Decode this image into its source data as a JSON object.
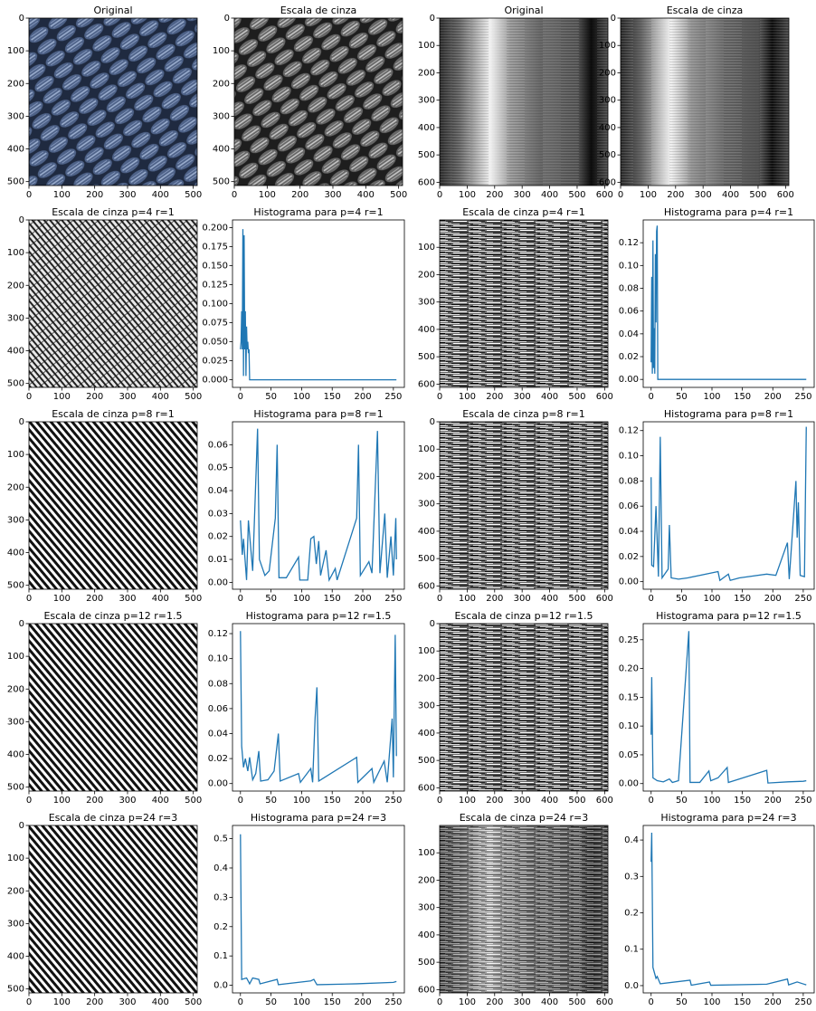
{
  "chart_data": [
    {
      "type": "image",
      "title": "Original",
      "xlim": [
        0,
        512
      ],
      "ylim": [
        512,
        0
      ],
      "xticks": [
        0,
        100,
        200,
        300,
        400,
        500
      ],
      "yticks": [
        0,
        100,
        200,
        300,
        400,
        500
      ]
    },
    {
      "type": "image",
      "title": "Escala de cinza",
      "xlim": [
        0,
        512
      ],
      "ylim": [
        512,
        0
      ],
      "xticks": [
        0,
        100,
        200,
        300,
        400,
        500
      ],
      "yticks": [
        0,
        100,
        200,
        300,
        400,
        500
      ]
    },
    {
      "type": "image",
      "title": "Original",
      "xlim": [
        0,
        612
      ],
      "ylim": [
        612,
        0
      ],
      "xticks": [
        0,
        100,
        200,
        300,
        400,
        500,
        600
      ],
      "yticks": [
        0,
        100,
        200,
        300,
        400,
        500,
        600
      ]
    },
    {
      "type": "image",
      "title": "Escala de cinza",
      "xlim": [
        0,
        612
      ],
      "ylim": [
        612,
        0
      ],
      "xticks": [
        0,
        100,
        200,
        300,
        400,
        500,
        600
      ],
      "yticks": [
        0,
        100,
        200,
        300,
        400,
        500,
        600
      ]
    },
    {
      "type": "image",
      "title": "Escala de cinza p=4 r=1",
      "xlim": [
        0,
        512
      ],
      "ylim": [
        512,
        0
      ],
      "xticks": [
        0,
        100,
        200,
        300,
        400,
        500
      ],
      "yticks": [
        0,
        100,
        200,
        300,
        400,
        500
      ]
    },
    {
      "type": "line",
      "title": "Histograma para p=4 r=1",
      "color": "#1f77b4",
      "xlim": [
        -13,
        268
      ],
      "ylim": [
        -0.01,
        0.21
      ],
      "xticks": [
        0,
        50,
        100,
        150,
        200,
        250
      ],
      "yticks": [
        {
          "value": 0,
          "label": "0.000"
        },
        {
          "value": 0.025,
          "label": "0.025"
        },
        {
          "value": 0.05,
          "label": "0.050"
        },
        {
          "value": 0.075,
          "label": "0.075"
        },
        {
          "value": 0.1,
          "label": "0.100"
        },
        {
          "value": 0.125,
          "label": "0.125"
        },
        {
          "value": 0.15,
          "label": "0.150"
        },
        {
          "value": 0.175,
          "label": "0.175"
        },
        {
          "value": 0.2,
          "label": "0.200"
        }
      ],
      "x": [
        0,
        1,
        2,
        3,
        4,
        5,
        6,
        7,
        8,
        9,
        10,
        11,
        12,
        13,
        14,
        15,
        16,
        255
      ],
      "values": [
        0.04,
        0.05,
        0.09,
        0.04,
        0.198,
        0.005,
        0.19,
        0.04,
        0.09,
        0.005,
        0.07,
        0.04,
        0.05,
        0.035,
        0.04,
        0,
        0,
        0
      ]
    },
    {
      "type": "image",
      "title": "Escala de cinza p=4 r=1",
      "xlim": [
        0,
        612
      ],
      "ylim": [
        612,
        0
      ],
      "xticks": [
        0,
        100,
        200,
        300,
        400,
        500,
        600
      ],
      "yticks": [
        100,
        200,
        300,
        400,
        500,
        600
      ]
    },
    {
      "type": "line",
      "title": "Histograma para p=4 r=1",
      "color": "#1f77b4",
      "xlim": [
        -13,
        268
      ],
      "ylim": [
        -0.007,
        0.14
      ],
      "xticks": [
        0,
        50,
        100,
        150,
        200,
        250
      ],
      "yticks": [
        {
          "value": 0,
          "label": "0.00"
        },
        {
          "value": 0.02,
          "label": "0.02"
        },
        {
          "value": 0.04,
          "label": "0.04"
        },
        {
          "value": 0.06,
          "label": "0.06"
        },
        {
          "value": 0.08,
          "label": "0.08"
        },
        {
          "value": 0.1,
          "label": "0.10"
        },
        {
          "value": 0.12,
          "label": "0.12"
        }
      ],
      "x": [
        0,
        1,
        2,
        3,
        4,
        5,
        6,
        7,
        8,
        9,
        10,
        11,
        12,
        13,
        255
      ],
      "values": [
        0.015,
        0.09,
        0.005,
        0.122,
        0.01,
        0.045,
        0.005,
        0.11,
        0.05,
        0.13,
        0.135,
        0,
        0,
        0,
        0
      ]
    },
    {
      "type": "image",
      "title": "Escala de cinza p=8 r=1",
      "xlim": [
        0,
        512
      ],
      "ylim": [
        512,
        0
      ],
      "xticks": [
        0,
        100,
        200,
        300,
        400,
        500
      ],
      "yticks": [
        0,
        100,
        200,
        300,
        400,
        500
      ]
    },
    {
      "type": "line",
      "title": "Histograma para p=8 r=1",
      "color": "#1f77b4",
      "xlim": [
        -13,
        268
      ],
      "ylim": [
        -0.003,
        0.07
      ],
      "xticks": [
        0,
        50,
        100,
        150,
        200,
        250
      ],
      "yticks": [
        {
          "value": 0,
          "label": "0.00"
        },
        {
          "value": 0.01,
          "label": "0.01"
        },
        {
          "value": 0.02,
          "label": "0.02"
        },
        {
          "value": 0.03,
          "label": "0.03"
        },
        {
          "value": 0.04,
          "label": "0.04"
        },
        {
          "value": 0.05,
          "label": "0.05"
        },
        {
          "value": 0.06,
          "label": "0.06"
        }
      ],
      "x": [
        0,
        3,
        5,
        10,
        13,
        20,
        28,
        31,
        40,
        47,
        57,
        60,
        63,
        75,
        95,
        97,
        110,
        115,
        120,
        124,
        128,
        131,
        140,
        145,
        155,
        158,
        190,
        193,
        196,
        210,
        215,
        224,
        228,
        236,
        240,
        246,
        250,
        254,
        255
      ],
      "values": [
        0.027,
        0.012,
        0.019,
        0.001,
        0.027,
        0.005,
        0.067,
        0.01,
        0.003,
        0.005,
        0.028,
        0.06,
        0.002,
        0.002,
        0.011,
        0.001,
        0.001,
        0.019,
        0.02,
        0.008,
        0.018,
        0.003,
        0.014,
        0.001,
        0.006,
        0.001,
        0.028,
        0.06,
        0.003,
        0.009,
        0.004,
        0.066,
        0.004,
        0.03,
        0.002,
        0.02,
        0.003,
        0.028,
        0.01
      ]
    },
    {
      "type": "image",
      "title": "Escala de cinza p=8 r=1",
      "xlim": [
        0,
        612
      ],
      "ylim": [
        612,
        0
      ],
      "xticks": [
        0,
        100,
        200,
        300,
        400,
        500,
        600
      ],
      "yticks": [
        0,
        100,
        200,
        300,
        400,
        500,
        600
      ]
    },
    {
      "type": "line",
      "title": "Histograma para p=8 r=1",
      "color": "#1f77b4",
      "xlim": [
        -13,
        268
      ],
      "ylim": [
        -0.006,
        0.127
      ],
      "xticks": [
        0,
        50,
        100,
        150,
        200,
        250
      ],
      "yticks": [
        {
          "value": 0,
          "label": "0.00"
        },
        {
          "value": 0.02,
          "label": "0.02"
        },
        {
          "value": 0.04,
          "label": "0.04"
        },
        {
          "value": 0.06,
          "label": "0.06"
        },
        {
          "value": 0.08,
          "label": "0.08"
        },
        {
          "value": 0.1,
          "label": "0.10"
        },
        {
          "value": 0.12,
          "label": "0.12"
        }
      ],
      "x": [
        0,
        1,
        4,
        8,
        12,
        15,
        18,
        28,
        30,
        33,
        45,
        60,
        110,
        113,
        127,
        130,
        145,
        190,
        205,
        224,
        227,
        238,
        240,
        242,
        245,
        252,
        255
      ],
      "values": [
        0.083,
        0.013,
        0.012,
        0.06,
        0.004,
        0.115,
        0.003,
        0.01,
        0.045,
        0.003,
        0.002,
        0.003,
        0.008,
        0.001,
        0.006,
        0.001,
        0.003,
        0.006,
        0.005,
        0.031,
        0.002,
        0.08,
        0.035,
        0.063,
        0.005,
        0.004,
        0.123
      ]
    },
    {
      "type": "image",
      "title": "Escala de cinza p=12 r=1.5",
      "xlim": [
        0,
        512
      ],
      "ylim": [
        512,
        0
      ],
      "xticks": [
        0,
        100,
        200,
        300,
        400,
        500
      ],
      "yticks": [
        0,
        100,
        200,
        300,
        400,
        500
      ]
    },
    {
      "type": "line",
      "title": "Histograma para p=12 r=1.5",
      "color": "#1f77b4",
      "xlim": [
        -13,
        268
      ],
      "ylim": [
        -0.006,
        0.128
      ],
      "xticks": [
        0,
        50,
        100,
        150,
        200,
        250
      ],
      "yticks": [
        {
          "value": 0,
          "label": "0.00"
        },
        {
          "value": 0.02,
          "label": "0.02"
        },
        {
          "value": 0.04,
          "label": "0.04"
        },
        {
          "value": 0.06,
          "label": "0.06"
        },
        {
          "value": 0.08,
          "label": "0.08"
        },
        {
          "value": 0.1,
          "label": "0.10"
        },
        {
          "value": 0.12,
          "label": "0.12"
        }
      ],
      "x": [
        0,
        2,
        5,
        8,
        12,
        15,
        20,
        25,
        30,
        33,
        45,
        55,
        62,
        65,
        95,
        98,
        115,
        118,
        122,
        125,
        128,
        190,
        192,
        215,
        218,
        235,
        240,
        248,
        250,
        253,
        255
      ],
      "values": [
        0.122,
        0.03,
        0.013,
        0.02,
        0.01,
        0.021,
        0.003,
        0.008,
        0.026,
        0.002,
        0.003,
        0.01,
        0.04,
        0.002,
        0.008,
        0.001,
        0.012,
        0.001,
        0.052,
        0.077,
        0.002,
        0.021,
        0.001,
        0.012,
        0.001,
        0.018,
        0.001,
        0.052,
        0.005,
        0.119,
        0.022
      ]
    },
    {
      "type": "image",
      "title": "Escala de cinza p=12 r=1.5",
      "xlim": [
        0,
        612
      ],
      "ylim": [
        612,
        0
      ],
      "xticks": [
        0,
        100,
        200,
        300,
        400,
        500,
        600
      ],
      "yticks": [
        0,
        100,
        200,
        300,
        400,
        500,
        600
      ]
    },
    {
      "type": "line",
      "title": "Histograma para p=12 r=1.5",
      "color": "#1f77b4",
      "xlim": [
        -13,
        268
      ],
      "ylim": [
        -0.013,
        0.278
      ],
      "xticks": [
        0,
        50,
        100,
        150,
        200,
        250
      ],
      "yticks": [
        {
          "value": 0,
          "label": "0.00"
        },
        {
          "value": 0.05,
          "label": "0.05"
        },
        {
          "value": 0.1,
          "label": "0.10"
        },
        {
          "value": 0.15,
          "label": "0.15"
        },
        {
          "value": 0.2,
          "label": "0.20"
        },
        {
          "value": 0.25,
          "label": "0.25"
        }
      ],
      "x": [
        0,
        1,
        3,
        10,
        20,
        30,
        35,
        45,
        62,
        64,
        80,
        95,
        98,
        110,
        125,
        127,
        190,
        192,
        225,
        250,
        255
      ],
      "values": [
        0.085,
        0.185,
        0.01,
        0.005,
        0.003,
        0.008,
        0.002,
        0.005,
        0.265,
        0.002,
        0.002,
        0.022,
        0.005,
        0.01,
        0.028,
        0.002,
        0.023,
        0.001,
        0.003,
        0.004,
        0.005
      ]
    },
    {
      "type": "image",
      "title": "Escala de cinza p=24 r=3",
      "xlim": [
        0,
        512
      ],
      "ylim": [
        512,
        0
      ],
      "xticks": [
        0,
        100,
        200,
        300,
        400,
        500
      ],
      "yticks": [
        0,
        100,
        200,
        300,
        400,
        500
      ]
    },
    {
      "type": "line",
      "title": "Histograma para p=24 r=3",
      "color": "#1f77b4",
      "xlim": [
        -13,
        268
      ],
      "ylim": [
        -0.026,
        0.545
      ],
      "xticks": [
        0,
        50,
        100,
        150,
        200,
        250
      ],
      "yticks": [
        {
          "value": 0,
          "label": "0.0"
        },
        {
          "value": 0.1,
          "label": "0.1"
        },
        {
          "value": 0.2,
          "label": "0.2"
        },
        {
          "value": 0.3,
          "label": "0.3"
        },
        {
          "value": 0.4,
          "label": "0.4"
        },
        {
          "value": 0.5,
          "label": "0.5"
        }
      ],
      "x": [
        0,
        2,
        10,
        15,
        20,
        30,
        32,
        60,
        62,
        115,
        120,
        125,
        190,
        250,
        255
      ],
      "values": [
        0.515,
        0.02,
        0.025,
        0.005,
        0.025,
        0.02,
        0.005,
        0.02,
        0.002,
        0.015,
        0.02,
        0.002,
        0.005,
        0.01,
        0.013
      ]
    },
    {
      "type": "image",
      "title": "Escala de cinza p=24 r=3",
      "xlim": [
        0,
        612
      ],
      "ylim": [
        612,
        0
      ],
      "xticks": [
        0,
        100,
        200,
        300,
        400,
        500,
        600
      ],
      "yticks": [
        100,
        200,
        300,
        400,
        500,
        600
      ]
    },
    {
      "type": "line",
      "title": "Histograma para p=24 r=3",
      "color": "#1f77b4",
      "xlim": [
        -13,
        268
      ],
      "ylim": [
        -0.02,
        0.44
      ],
      "xticks": [
        0,
        50,
        100,
        150,
        200,
        250
      ],
      "yticks": [
        {
          "value": 0,
          "label": "0.0"
        },
        {
          "value": 0.1,
          "label": "0.1"
        },
        {
          "value": 0.2,
          "label": "0.2"
        },
        {
          "value": 0.3,
          "label": "0.3"
        },
        {
          "value": 0.4,
          "label": "0.4"
        }
      ],
      "x": [
        0,
        1,
        3,
        8,
        10,
        15,
        64,
        66,
        96,
        98,
        190,
        224,
        226,
        240,
        255
      ],
      "values": [
        0.34,
        0.42,
        0.05,
        0.02,
        0.025,
        0.005,
        0.015,
        0.001,
        0.01,
        0.001,
        0.004,
        0.018,
        0.002,
        0.01,
        0.002
      ]
    }
  ]
}
